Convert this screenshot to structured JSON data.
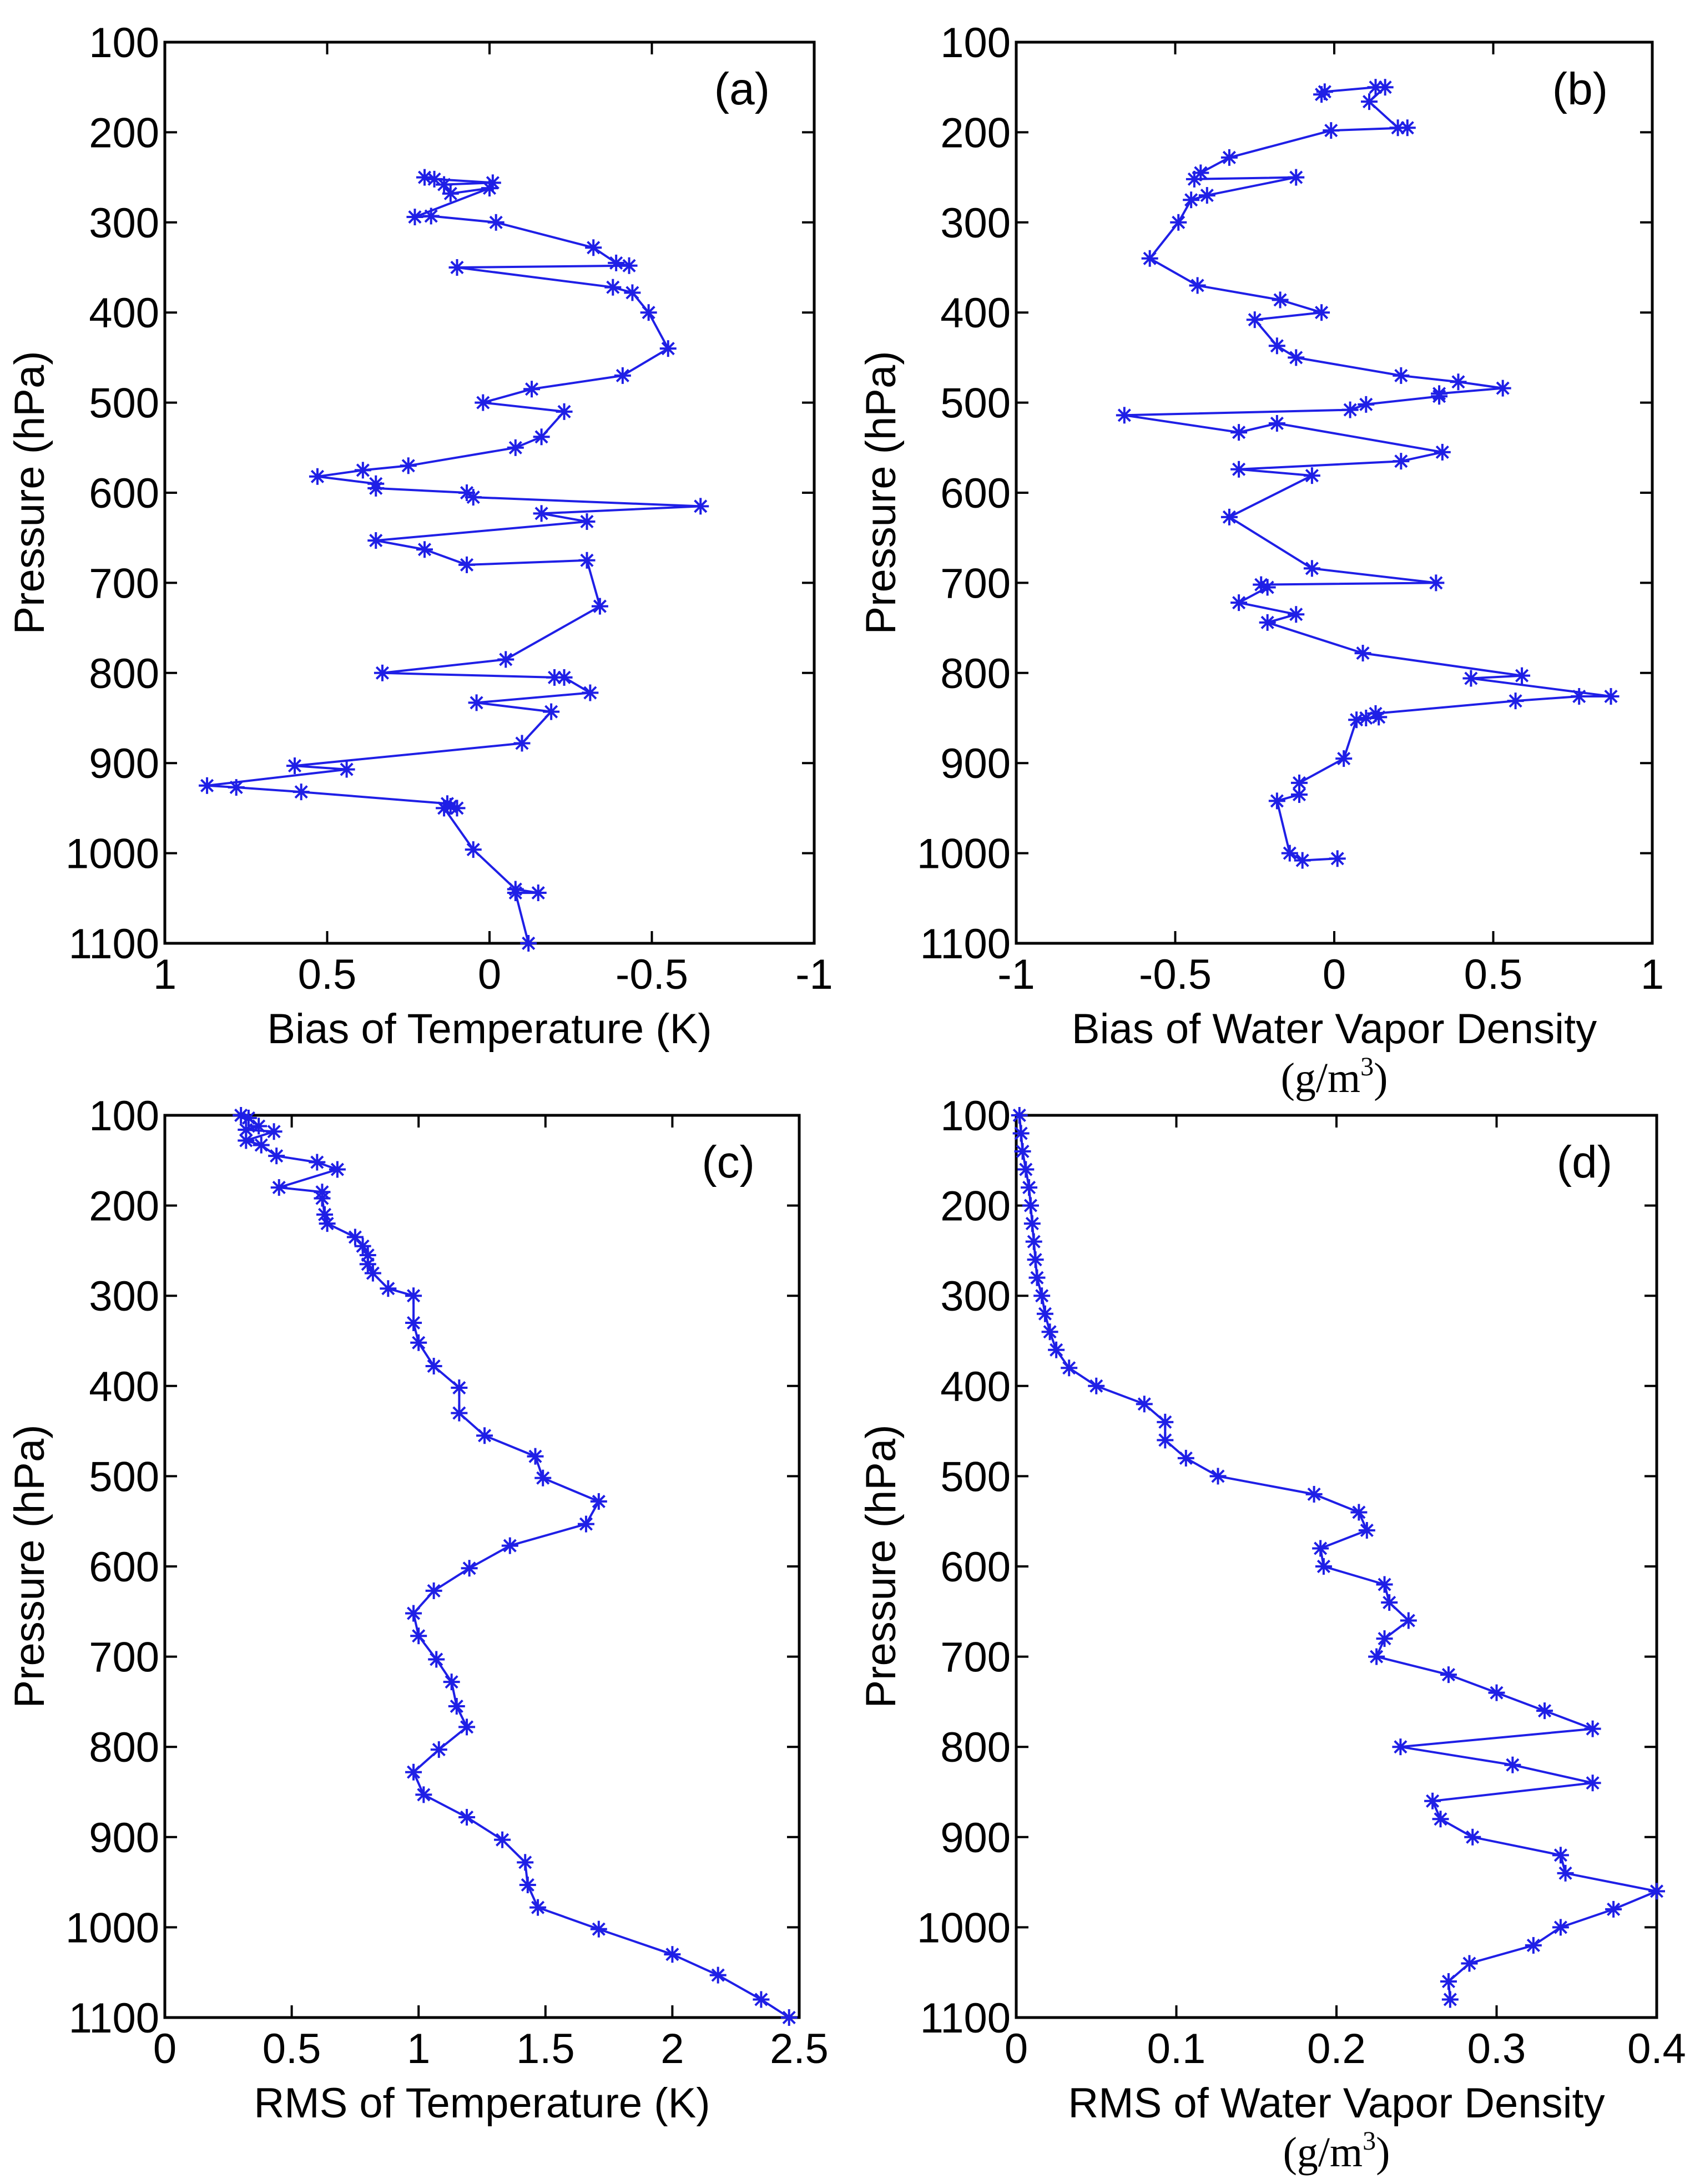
{
  "figure": {
    "series_color": "#1f1fe6",
    "axis_color": "#000000"
  },
  "chart_data": [
    {
      "id": "a",
      "type": "line",
      "panel_label": "(a)",
      "xlabel": "Bias of Temperature (K)",
      "xlabel_unit": "",
      "ylabel": "Pressure (hPa)",
      "xlim": [
        1,
        -1
      ],
      "ylim": [
        100,
        1100
      ],
      "x_reversed": true,
      "y_reversed": true,
      "xticks": [
        1,
        0.5,
        0,
        -0.5,
        -1
      ],
      "xtick_labels": [
        "1",
        "0.5",
        "0",
        "-0.5",
        "-1"
      ],
      "yticks": [
        100,
        200,
        300,
        400,
        500,
        600,
        700,
        800,
        900,
        1000,
        1100
      ],
      "ytick_labels": [
        "100",
        "200",
        "300",
        "400",
        "500",
        "600",
        "700",
        "800",
        "900",
        "1000",
        "1100"
      ],
      "marker": "asterisk",
      "series": [
        {
          "name": "bias_temperature",
          "points": [
            [
              0.2,
              250
            ],
            [
              0.17,
              252
            ],
            [
              -0.01,
              256
            ],
            [
              0.14,
              258
            ],
            [
              0.12,
              268
            ],
            [
              0.0,
              262
            ],
            [
              0.23,
              294
            ],
            [
              0.18,
              293
            ],
            [
              -0.02,
              300
            ],
            [
              -0.32,
              328
            ],
            [
              -0.39,
              345
            ],
            [
              -0.43,
              348
            ],
            [
              0.1,
              350
            ],
            [
              -0.38,
              372
            ],
            [
              -0.44,
              378
            ],
            [
              -0.49,
              400
            ],
            [
              -0.55,
              440
            ],
            [
              -0.41,
              470
            ],
            [
              -0.13,
              485
            ],
            [
              0.02,
              500
            ],
            [
              -0.23,
              510
            ],
            [
              -0.16,
              538
            ],
            [
              -0.08,
              550
            ],
            [
              0.25,
              570
            ],
            [
              0.39,
              575
            ],
            [
              0.53,
              582
            ],
            [
              0.35,
              590
            ],
            [
              0.35,
              595
            ],
            [
              0.07,
              600
            ],
            [
              0.05,
              605
            ],
            [
              -0.65,
              615
            ],
            [
              -0.16,
              623
            ],
            [
              -0.3,
              632
            ],
            [
              0.35,
              653
            ],
            [
              0.2,
              663
            ],
            [
              0.07,
              680
            ],
            [
              -0.3,
              675
            ],
            [
              -0.34,
              726
            ],
            [
              -0.05,
              785
            ],
            [
              0.33,
              800
            ],
            [
              -0.2,
              805
            ],
            [
              -0.23,
              805
            ],
            [
              -0.31,
              822
            ],
            [
              0.04,
              833
            ],
            [
              -0.19,
              843
            ],
            [
              -0.1,
              878
            ],
            [
              0.6,
              903
            ],
            [
              0.44,
              907
            ],
            [
              0.87,
              925
            ],
            [
              0.78,
              927
            ],
            [
              0.58,
              932
            ],
            [
              0.13,
              945
            ],
            [
              0.12,
              948
            ],
            [
              0.1,
              950
            ],
            [
              0.14,
              950
            ],
            [
              0.05,
              996
            ],
            [
              -0.08,
              1040
            ],
            [
              -0.15,
              1044
            ],
            [
              -0.08,
              1044
            ],
            [
              -0.12,
              1100
            ]
          ]
        }
      ]
    },
    {
      "id": "b",
      "type": "line",
      "panel_label": "(b)",
      "xlabel": "Bias of Water Vapor Density",
      "xlabel_unit": "(g/m³)",
      "xlabel_unit_base": "(g/m",
      "xlabel_unit_exp": "3",
      "xlabel_unit_close": ")",
      "ylabel": "Pressure (hPa)",
      "xlim": [
        -1,
        1
      ],
      "ylim": [
        100,
        1100
      ],
      "x_reversed": false,
      "y_reversed": true,
      "xticks": [
        -1,
        -0.5,
        0,
        0.5,
        1
      ],
      "xtick_labels": [
        "-1",
        "-0.5",
        "0",
        "0.5",
        "1"
      ],
      "yticks": [
        100,
        200,
        300,
        400,
        500,
        600,
        700,
        800,
        900,
        1000,
        1100
      ],
      "ytick_labels": [
        "100",
        "200",
        "300",
        "400",
        "500",
        "600",
        "700",
        "800",
        "900",
        "1000",
        "1100"
      ],
      "marker": "asterisk",
      "series": [
        {
          "name": "bias_water_vapor_density",
          "points": [
            [
              -0.04,
              158
            ],
            [
              -0.03,
              155
            ],
            [
              0.13,
              150
            ],
            [
              0.16,
              150
            ],
            [
              0.11,
              166
            ],
            [
              0.2,
              195
            ],
            [
              0.23,
              195
            ],
            [
              -0.01,
              198
            ],
            [
              -0.33,
              228
            ],
            [
              -0.42,
              245
            ],
            [
              -0.44,
              252
            ],
            [
              -0.12,
              250
            ],
            [
              -0.4,
              270
            ],
            [
              -0.45,
              275
            ],
            [
              -0.49,
              300
            ],
            [
              -0.58,
              340
            ],
            [
              -0.43,
              370
            ],
            [
              -0.17,
              386
            ],
            [
              -0.04,
              400
            ],
            [
              -0.25,
              408
            ],
            [
              -0.18,
              437
            ],
            [
              -0.12,
              450
            ],
            [
              0.21,
              470
            ],
            [
              0.39,
              477
            ],
            [
              0.53,
              484
            ],
            [
              0.33,
              490
            ],
            [
              0.33,
              493
            ],
            [
              0.1,
              502
            ],
            [
              0.05,
              508
            ],
            [
              -0.66,
              514
            ],
            [
              -0.3,
              533
            ],
            [
              -0.18,
              523
            ],
            [
              0.34,
              555
            ],
            [
              0.21,
              565
            ],
            [
              -0.3,
              574
            ],
            [
              -0.07,
              581
            ],
            [
              -0.33,
              627
            ],
            [
              -0.07,
              684
            ],
            [
              0.32,
              700
            ],
            [
              -0.23,
              702
            ],
            [
              -0.21,
              705
            ],
            [
              -0.3,
              722
            ],
            [
              -0.12,
              735
            ],
            [
              -0.21,
              744
            ],
            [
              0.09,
              778
            ],
            [
              0.59,
              803
            ],
            [
              0.43,
              806
            ],
            [
              0.87,
              826
            ],
            [
              0.77,
              826
            ],
            [
              0.57,
              831
            ],
            [
              0.13,
              845
            ],
            [
              0.14,
              849
            ],
            [
              0.1,
              850
            ],
            [
              0.07,
              852
            ],
            [
              0.03,
              895
            ],
            [
              -0.11,
              922
            ],
            [
              -0.11,
              935
            ],
            [
              -0.18,
              942
            ],
            [
              -0.14,
              1000
            ],
            [
              -0.1,
              1008
            ],
            [
              0.01,
              1006
            ]
          ]
        }
      ]
    },
    {
      "id": "c",
      "type": "line",
      "panel_label": "(c)",
      "xlabel": "RMS of Temperature (K)",
      "xlabel_unit": "",
      "ylabel": "Pressure (hPa)",
      "xlim": [
        0,
        2.5
      ],
      "ylim": [
        100,
        1100
      ],
      "x_reversed": false,
      "y_reversed": true,
      "xticks": [
        0,
        0.5,
        1,
        1.5,
        2,
        2.5
      ],
      "xtick_labels": [
        "0",
        "0.5",
        "1",
        "1.5",
        "2",
        "2.5"
      ],
      "yticks": [
        100,
        200,
        300,
        400,
        500,
        600,
        700,
        800,
        900,
        1000,
        1100
      ],
      "ytick_labels": [
        "100",
        "200",
        "300",
        "400",
        "500",
        "600",
        "700",
        "800",
        "900",
        "1000",
        "1100"
      ],
      "marker": "asterisk",
      "series": [
        {
          "name": "rms_temperature",
          "points": [
            [
              0.3,
              100
            ],
            [
              0.33,
              103
            ],
            [
              0.37,
              112
            ],
            [
              0.32,
              116
            ],
            [
              0.43,
              118
            ],
            [
              0.32,
              128
            ],
            [
              0.38,
              133
            ],
            [
              0.44,
              145
            ],
            [
              0.6,
              152
            ],
            [
              0.68,
              160
            ],
            [
              0.45,
              180
            ],
            [
              0.62,
              185
            ],
            [
              0.62,
              192
            ],
            [
              0.63,
              210
            ],
            [
              0.64,
              220
            ],
            [
              0.75,
              235
            ],
            [
              0.78,
              245
            ],
            [
              0.8,
              255
            ],
            [
              0.8,
              265
            ],
            [
              0.82,
              275
            ],
            [
              0.88,
              292
            ],
            [
              0.98,
              300
            ],
            [
              0.98,
              330
            ],
            [
              1.0,
              352
            ],
            [
              1.06,
              378
            ],
            [
              1.16,
              402
            ],
            [
              1.16,
              430
            ],
            [
              1.26,
              455
            ],
            [
              1.46,
              478
            ],
            [
              1.49,
              502
            ],
            [
              1.71,
              528
            ],
            [
              1.66,
              553
            ],
            [
              1.36,
              577
            ],
            [
              1.2,
              602
            ],
            [
              1.06,
              627
            ],
            [
              0.98,
              652
            ],
            [
              1.0,
              677
            ],
            [
              1.07,
              703
            ],
            [
              1.13,
              728
            ],
            [
              1.15,
              755
            ],
            [
              1.19,
              778
            ],
            [
              1.08,
              803
            ],
            [
              0.98,
              828
            ],
            [
              1.02,
              853
            ],
            [
              1.19,
              878
            ],
            [
              1.33,
              903
            ],
            [
              1.42,
              928
            ],
            [
              1.43,
              953
            ],
            [
              1.47,
              978
            ],
            [
              1.71,
              1002
            ],
            [
              2.0,
              1030
            ],
            [
              2.18,
              1053
            ],
            [
              2.35,
              1080
            ],
            [
              2.46,
              1100
            ]
          ]
        }
      ]
    },
    {
      "id": "d",
      "type": "line",
      "panel_label": "(d)",
      "xlabel": "RMS of Water Vapor Density",
      "xlabel_unit": "(g/m³)",
      "xlabel_unit_base": "(g/m",
      "xlabel_unit_exp": "3",
      "xlabel_unit_close": ")",
      "ylabel": "Pressure (hPa)",
      "xlim": [
        0,
        0.4
      ],
      "ylim": [
        100,
        1100
      ],
      "x_reversed": false,
      "y_reversed": true,
      "xticks": [
        0,
        0.1,
        0.2,
        0.3,
        0.4
      ],
      "xtick_labels": [
        "0",
        "0.1",
        "0.2",
        "0.3",
        "0.4"
      ],
      "yticks": [
        100,
        200,
        300,
        400,
        500,
        600,
        700,
        800,
        900,
        1000,
        1100
      ],
      "ytick_labels": [
        "100",
        "200",
        "300",
        "400",
        "500",
        "600",
        "700",
        "800",
        "900",
        "1000",
        "1100"
      ],
      "marker": "asterisk",
      "series": [
        {
          "name": "rms_water_vapor_density",
          "points": [
            [
              0.002,
              100
            ],
            [
              0.003,
              120
            ],
            [
              0.004,
              140
            ],
            [
              0.006,
              160
            ],
            [
              0.008,
              180
            ],
            [
              0.009,
              200
            ],
            [
              0.01,
              220
            ],
            [
              0.011,
              240
            ],
            [
              0.012,
              260
            ],
            [
              0.013,
              280
            ],
            [
              0.016,
              300
            ],
            [
              0.018,
              320
            ],
            [
              0.021,
              340
            ],
            [
              0.025,
              360
            ],
            [
              0.033,
              380
            ],
            [
              0.05,
              400
            ],
            [
              0.08,
              420
            ],
            [
              0.093,
              440
            ],
            [
              0.093,
              460
            ],
            [
              0.106,
              480
            ],
            [
              0.126,
              500
            ],
            [
              0.186,
              520
            ],
            [
              0.214,
              540
            ],
            [
              0.219,
              560
            ],
            [
              0.19,
              580
            ],
            [
              0.192,
              600
            ],
            [
              0.23,
              620
            ],
            [
              0.233,
              640
            ],
            [
              0.245,
              660
            ],
            [
              0.23,
              680
            ],
            [
              0.225,
              700
            ],
            [
              0.27,
              720
            ],
            [
              0.3,
              740
            ],
            [
              0.33,
              760
            ],
            [
              0.36,
              780
            ],
            [
              0.24,
              800
            ],
            [
              0.31,
              820
            ],
            [
              0.36,
              840
            ],
            [
              0.26,
              860
            ],
            [
              0.265,
              880
            ],
            [
              0.285,
              900
            ],
            [
              0.34,
              920
            ],
            [
              0.343,
              940
            ],
            [
              0.4,
              960
            ],
            [
              0.373,
              980
            ],
            [
              0.34,
              1000
            ],
            [
              0.323,
              1020
            ],
            [
              0.283,
              1040
            ],
            [
              0.27,
              1060
            ],
            [
              0.271,
              1080
            ]
          ]
        }
      ]
    }
  ]
}
